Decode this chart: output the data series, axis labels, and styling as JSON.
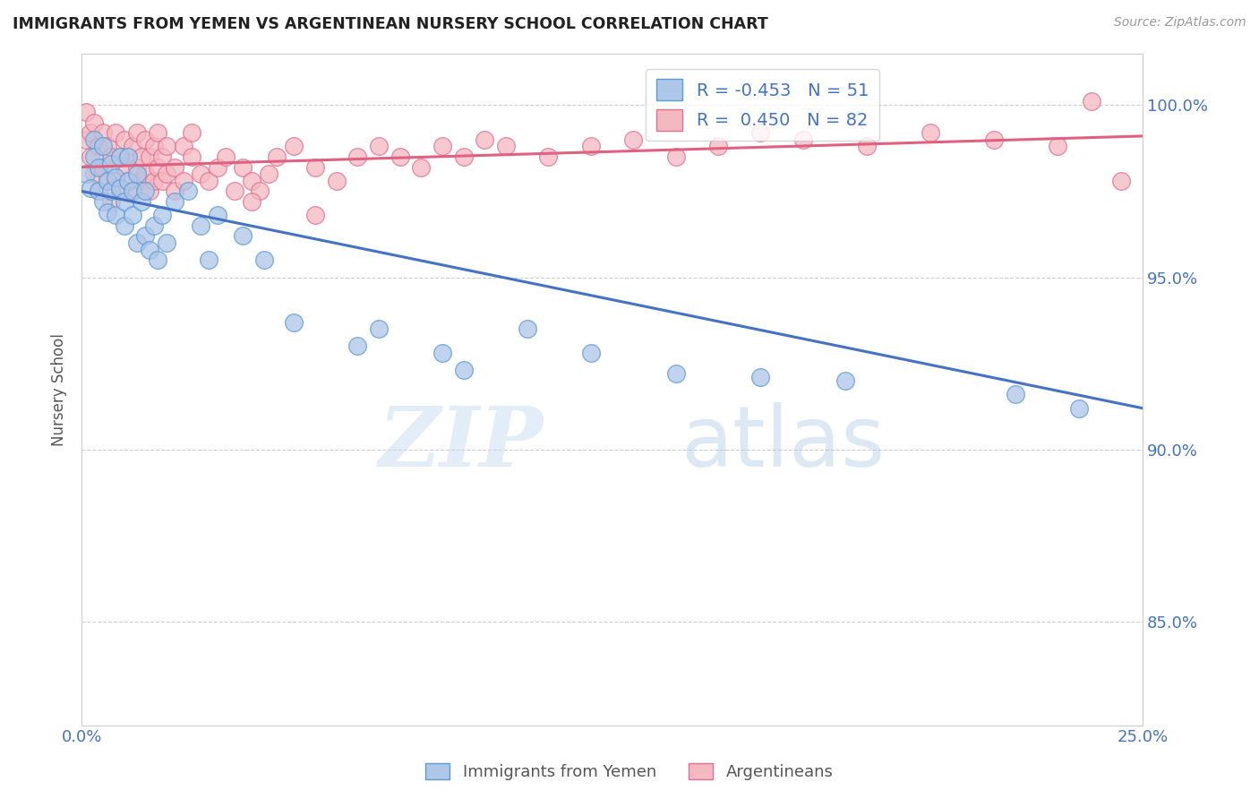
{
  "title": "IMMIGRANTS FROM YEMEN VS ARGENTINEAN NURSERY SCHOOL CORRELATION CHART",
  "source": "Source: ZipAtlas.com",
  "ylabel": "Nursery School",
  "ylabel_ticks": [
    "85.0%",
    "90.0%",
    "95.0%",
    "100.0%"
  ],
  "ylabel_tick_vals": [
    0.85,
    0.9,
    0.95,
    1.0
  ],
  "xlim": [
    0.0,
    0.25
  ],
  "ylim": [
    0.82,
    1.015
  ],
  "legend_blue_r": "-0.453",
  "legend_blue_n": "51",
  "legend_pink_r": "0.450",
  "legend_pink_n": "82",
  "blue_color": "#aec6e8",
  "pink_color": "#f4b8c1",
  "blue_edge_color": "#5b9bd5",
  "pink_edge_color": "#e07090",
  "blue_line_color": "#4472c4",
  "pink_line_color": "#e06080",
  "blue_scatter_x": [
    0.001,
    0.002,
    0.003,
    0.003,
    0.004,
    0.004,
    0.005,
    0.005,
    0.006,
    0.006,
    0.007,
    0.007,
    0.008,
    0.008,
    0.009,
    0.009,
    0.01,
    0.01,
    0.011,
    0.011,
    0.012,
    0.012,
    0.013,
    0.013,
    0.014,
    0.015,
    0.015,
    0.016,
    0.017,
    0.018,
    0.019,
    0.02,
    0.022,
    0.025,
    0.028,
    0.03,
    0.032,
    0.038,
    0.043,
    0.05,
    0.065,
    0.07,
    0.085,
    0.09,
    0.105,
    0.12,
    0.14,
    0.16,
    0.18,
    0.22,
    0.235
  ],
  "blue_scatter_y": [
    0.98,
    0.976,
    0.99,
    0.985,
    0.975,
    0.982,
    0.988,
    0.972,
    0.978,
    0.969,
    0.983,
    0.975,
    0.968,
    0.979,
    0.976,
    0.985,
    0.972,
    0.965,
    0.978,
    0.985,
    0.968,
    0.975,
    0.98,
    0.96,
    0.972,
    0.975,
    0.962,
    0.958,
    0.965,
    0.955,
    0.968,
    0.96,
    0.972,
    0.975,
    0.965,
    0.955,
    0.968,
    0.962,
    0.955,
    0.937,
    0.93,
    0.935,
    0.928,
    0.923,
    0.935,
    0.928,
    0.922,
    0.921,
    0.92,
    0.916,
    0.912
  ],
  "pink_scatter_x": [
    0.001,
    0.001,
    0.002,
    0.002,
    0.003,
    0.003,
    0.004,
    0.004,
    0.005,
    0.005,
    0.006,
    0.006,
    0.007,
    0.007,
    0.008,
    0.008,
    0.009,
    0.009,
    0.01,
    0.01,
    0.011,
    0.011,
    0.012,
    0.012,
    0.013,
    0.013,
    0.014,
    0.014,
    0.015,
    0.015,
    0.016,
    0.016,
    0.017,
    0.017,
    0.018,
    0.018,
    0.019,
    0.019,
    0.02,
    0.02,
    0.022,
    0.022,
    0.024,
    0.024,
    0.026,
    0.026,
    0.028,
    0.03,
    0.032,
    0.034,
    0.036,
    0.038,
    0.04,
    0.042,
    0.044,
    0.046,
    0.05,
    0.055,
    0.06,
    0.065,
    0.07,
    0.075,
    0.08,
    0.085,
    0.09,
    0.095,
    0.1,
    0.11,
    0.12,
    0.13,
    0.14,
    0.15,
    0.16,
    0.17,
    0.185,
    0.2,
    0.215,
    0.23,
    0.04,
    0.055,
    0.238,
    0.245
  ],
  "pink_scatter_y": [
    0.99,
    0.998,
    0.985,
    0.992,
    0.98,
    0.995,
    0.988,
    0.975,
    0.982,
    0.992,
    0.978,
    0.988,
    0.972,
    0.985,
    0.992,
    0.978,
    0.985,
    0.975,
    0.982,
    0.99,
    0.978,
    0.985,
    0.988,
    0.975,
    0.982,
    0.992,
    0.978,
    0.985,
    0.98,
    0.99,
    0.975,
    0.985,
    0.988,
    0.978,
    0.982,
    0.992,
    0.978,
    0.985,
    0.98,
    0.988,
    0.975,
    0.982,
    0.988,
    0.978,
    0.985,
    0.992,
    0.98,
    0.978,
    0.982,
    0.985,
    0.975,
    0.982,
    0.978,
    0.975,
    0.98,
    0.985,
    0.988,
    0.982,
    0.978,
    0.985,
    0.988,
    0.985,
    0.982,
    0.988,
    0.985,
    0.99,
    0.988,
    0.985,
    0.988,
    0.99,
    0.985,
    0.988,
    0.992,
    0.99,
    0.988,
    0.992,
    0.99,
    0.988,
    0.972,
    0.968,
    1.001,
    0.978
  ],
  "watermark_zip": "ZIP",
  "watermark_atlas": "atlas",
  "background_color": "#ffffff",
  "grid_color": "#cccccc"
}
